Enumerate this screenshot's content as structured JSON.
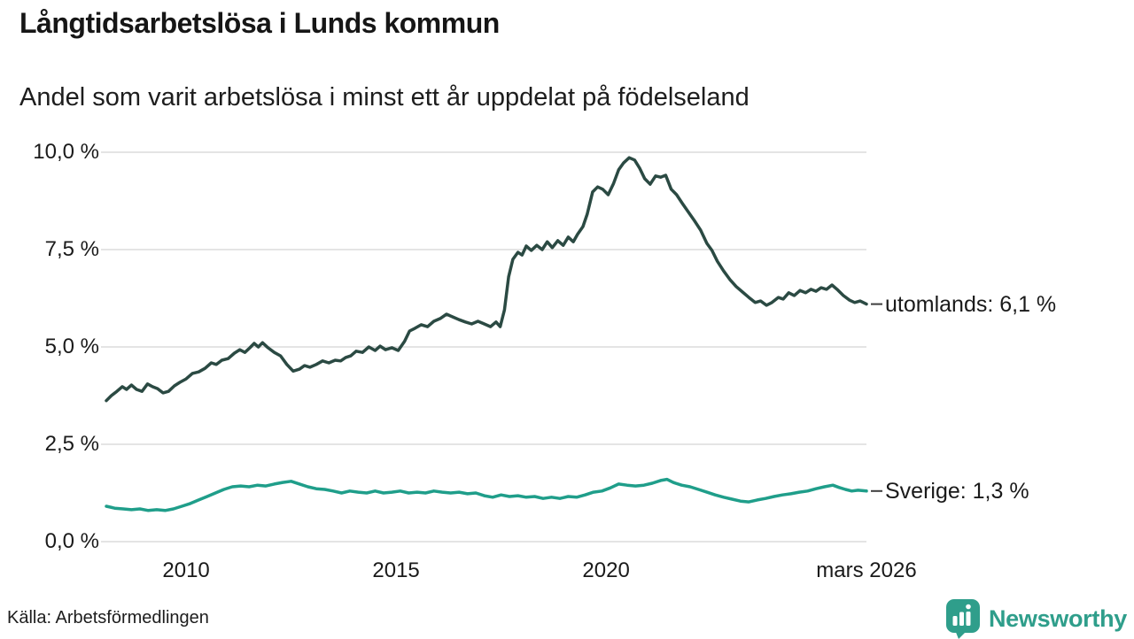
{
  "header": {
    "title": "Långtidsarbetslösa i Lunds kommun",
    "subtitle": "Andel som varit arbetslösa i minst ett år uppdelat på födelseland"
  },
  "footer": {
    "source": "Källa: Arbetsförmedlingen",
    "brand_name": "Newsworthy",
    "brand_icon": "bar-chart-pin-icon"
  },
  "colors": {
    "text": "#1a1a1a",
    "grid": "#e4e4e4",
    "tick_dash": "#3d3d3d",
    "background": "#ffffff",
    "brand": "#2f9e8b"
  },
  "chart_data": {
    "type": "line",
    "title": "Långtidsarbetslösa i Lunds kommun",
    "subtitle": "Andel som varit arbetslösa i minst ett år uppdelat på födelseland",
    "source": "Källa: Arbetsförmedlingen",
    "unit": "%",
    "grid": true,
    "legend_position": "right-end-labels",
    "xlim": [
      2008.1,
      2026.2
    ],
    "ylim": [
      0,
      10
    ],
    "y_ticks": [
      {
        "value": 10,
        "label": "10,0 %"
      },
      {
        "value": 7.5,
        "label": "7,5 %"
      },
      {
        "value": 5,
        "label": "5,0 %"
      },
      {
        "value": 2.5,
        "label": "2,5 %"
      },
      {
        "value": 0,
        "label": "0,0 %"
      }
    ],
    "x_ticks": [
      {
        "value": 2010,
        "label": "2010"
      },
      {
        "value": 2015,
        "label": "2015"
      },
      {
        "value": 2020,
        "label": "2020"
      },
      {
        "value": 2026.2,
        "label": "mars 2026"
      }
    ],
    "series": [
      {
        "name": "utomlands",
        "end_label": "utomlands: 6,1 %",
        "end_value": "6,1 %",
        "color": "#2b4a43",
        "points": [
          [
            2008.1,
            3.62
          ],
          [
            2008.22,
            3.75
          ],
          [
            2008.35,
            3.86
          ],
          [
            2008.48,
            3.98
          ],
          [
            2008.58,
            3.91
          ],
          [
            2008.7,
            4.02
          ],
          [
            2008.82,
            3.91
          ],
          [
            2008.95,
            3.86
          ],
          [
            2009.08,
            4.05
          ],
          [
            2009.2,
            3.98
          ],
          [
            2009.32,
            3.93
          ],
          [
            2009.45,
            3.82
          ],
          [
            2009.58,
            3.86
          ],
          [
            2009.72,
            4.0
          ],
          [
            2009.85,
            4.09
          ],
          [
            2010.0,
            4.18
          ],
          [
            2010.15,
            4.32
          ],
          [
            2010.3,
            4.36
          ],
          [
            2010.45,
            4.45
          ],
          [
            2010.6,
            4.59
          ],
          [
            2010.72,
            4.55
          ],
          [
            2010.85,
            4.66
          ],
          [
            2011.0,
            4.7
          ],
          [
            2011.15,
            4.84
          ],
          [
            2011.28,
            4.93
          ],
          [
            2011.4,
            4.86
          ],
          [
            2011.52,
            4.98
          ],
          [
            2011.62,
            5.09
          ],
          [
            2011.72,
            5.0
          ],
          [
            2011.82,
            5.11
          ],
          [
            2011.95,
            4.98
          ],
          [
            2012.1,
            4.86
          ],
          [
            2012.25,
            4.77
          ],
          [
            2012.4,
            4.55
          ],
          [
            2012.55,
            4.38
          ],
          [
            2012.7,
            4.43
          ],
          [
            2012.82,
            4.52
          ],
          [
            2012.95,
            4.48
          ],
          [
            2013.1,
            4.55
          ],
          [
            2013.25,
            4.64
          ],
          [
            2013.4,
            4.59
          ],
          [
            2013.55,
            4.66
          ],
          [
            2013.68,
            4.64
          ],
          [
            2013.8,
            4.73
          ],
          [
            2013.92,
            4.77
          ],
          [
            2014.05,
            4.89
          ],
          [
            2014.2,
            4.86
          ],
          [
            2014.35,
            5.0
          ],
          [
            2014.5,
            4.91
          ],
          [
            2014.62,
            5.02
          ],
          [
            2014.75,
            4.93
          ],
          [
            2014.9,
            4.98
          ],
          [
            2015.05,
            4.91
          ],
          [
            2015.2,
            5.14
          ],
          [
            2015.32,
            5.41
          ],
          [
            2015.45,
            5.48
          ],
          [
            2015.6,
            5.57
          ],
          [
            2015.75,
            5.52
          ],
          [
            2015.9,
            5.66
          ],
          [
            2016.05,
            5.73
          ],
          [
            2016.2,
            5.84
          ],
          [
            2016.35,
            5.77
          ],
          [
            2016.5,
            5.7
          ],
          [
            2016.65,
            5.64
          ],
          [
            2016.8,
            5.59
          ],
          [
            2016.95,
            5.66
          ],
          [
            2017.1,
            5.59
          ],
          [
            2017.25,
            5.52
          ],
          [
            2017.38,
            5.64
          ],
          [
            2017.48,
            5.52
          ],
          [
            2017.58,
            5.95
          ],
          [
            2017.68,
            6.8
          ],
          [
            2017.78,
            7.25
          ],
          [
            2017.9,
            7.43
          ],
          [
            2018.0,
            7.36
          ],
          [
            2018.1,
            7.59
          ],
          [
            2018.22,
            7.48
          ],
          [
            2018.35,
            7.61
          ],
          [
            2018.48,
            7.5
          ],
          [
            2018.6,
            7.7
          ],
          [
            2018.72,
            7.55
          ],
          [
            2018.85,
            7.73
          ],
          [
            2018.98,
            7.61
          ],
          [
            2019.1,
            7.82
          ],
          [
            2019.22,
            7.7
          ],
          [
            2019.32,
            7.89
          ],
          [
            2019.45,
            8.09
          ],
          [
            2019.55,
            8.41
          ],
          [
            2019.68,
            8.98
          ],
          [
            2019.8,
            9.11
          ],
          [
            2019.92,
            9.05
          ],
          [
            2020.05,
            8.91
          ],
          [
            2020.18,
            9.2
          ],
          [
            2020.3,
            9.55
          ],
          [
            2020.42,
            9.73
          ],
          [
            2020.55,
            9.86
          ],
          [
            2020.68,
            9.8
          ],
          [
            2020.8,
            9.59
          ],
          [
            2020.92,
            9.32
          ],
          [
            2021.05,
            9.18
          ],
          [
            2021.18,
            9.39
          ],
          [
            2021.3,
            9.36
          ],
          [
            2021.42,
            9.41
          ],
          [
            2021.55,
            9.05
          ],
          [
            2021.68,
            8.91
          ],
          [
            2021.82,
            8.68
          ],
          [
            2021.95,
            8.48
          ],
          [
            2022.1,
            8.25
          ],
          [
            2022.25,
            8.0
          ],
          [
            2022.4,
            7.66
          ],
          [
            2022.52,
            7.48
          ],
          [
            2022.65,
            7.2
          ],
          [
            2022.8,
            6.95
          ],
          [
            2022.95,
            6.73
          ],
          [
            2023.1,
            6.55
          ],
          [
            2023.25,
            6.41
          ],
          [
            2023.4,
            6.27
          ],
          [
            2023.55,
            6.14
          ],
          [
            2023.68,
            6.18
          ],
          [
            2023.82,
            6.07
          ],
          [
            2023.95,
            6.14
          ],
          [
            2024.1,
            6.27
          ],
          [
            2024.22,
            6.23
          ],
          [
            2024.35,
            6.39
          ],
          [
            2024.48,
            6.32
          ],
          [
            2024.62,
            6.45
          ],
          [
            2024.75,
            6.39
          ],
          [
            2024.88,
            6.48
          ],
          [
            2025.0,
            6.43
          ],
          [
            2025.12,
            6.52
          ],
          [
            2025.25,
            6.48
          ],
          [
            2025.38,
            6.59
          ],
          [
            2025.5,
            6.48
          ],
          [
            2025.65,
            6.32
          ],
          [
            2025.8,
            6.2
          ],
          [
            2025.92,
            6.14
          ],
          [
            2026.05,
            6.18
          ],
          [
            2026.2,
            6.1
          ]
        ]
      },
      {
        "name": "Sverige",
        "end_label": "Sverige: 1,3 %",
        "end_value": "1,3 %",
        "color": "#1f9e8a",
        "points": [
          [
            2008.1,
            0.91
          ],
          [
            2008.3,
            0.86
          ],
          [
            2008.5,
            0.84
          ],
          [
            2008.7,
            0.82
          ],
          [
            2008.9,
            0.84
          ],
          [
            2009.1,
            0.8
          ],
          [
            2009.3,
            0.82
          ],
          [
            2009.5,
            0.8
          ],
          [
            2009.7,
            0.84
          ],
          [
            2009.9,
            0.91
          ],
          [
            2010.1,
            0.98
          ],
          [
            2010.3,
            1.07
          ],
          [
            2010.5,
            1.16
          ],
          [
            2010.7,
            1.25
          ],
          [
            2010.9,
            1.34
          ],
          [
            2011.1,
            1.41
          ],
          [
            2011.3,
            1.43
          ],
          [
            2011.5,
            1.41
          ],
          [
            2011.7,
            1.45
          ],
          [
            2011.9,
            1.43
          ],
          [
            2012.1,
            1.48
          ],
          [
            2012.3,
            1.52
          ],
          [
            2012.5,
            1.55
          ],
          [
            2012.7,
            1.48
          ],
          [
            2012.9,
            1.41
          ],
          [
            2013.1,
            1.36
          ],
          [
            2013.3,
            1.34
          ],
          [
            2013.5,
            1.3
          ],
          [
            2013.7,
            1.25
          ],
          [
            2013.9,
            1.3
          ],
          [
            2014.1,
            1.27
          ],
          [
            2014.3,
            1.25
          ],
          [
            2014.5,
            1.3
          ],
          [
            2014.7,
            1.25
          ],
          [
            2014.9,
            1.27
          ],
          [
            2015.1,
            1.3
          ],
          [
            2015.3,
            1.25
          ],
          [
            2015.5,
            1.27
          ],
          [
            2015.7,
            1.25
          ],
          [
            2015.9,
            1.3
          ],
          [
            2016.1,
            1.27
          ],
          [
            2016.3,
            1.25
          ],
          [
            2016.5,
            1.27
          ],
          [
            2016.7,
            1.23
          ],
          [
            2016.9,
            1.25
          ],
          [
            2017.1,
            1.18
          ],
          [
            2017.3,
            1.14
          ],
          [
            2017.5,
            1.2
          ],
          [
            2017.7,
            1.16
          ],
          [
            2017.9,
            1.18
          ],
          [
            2018.1,
            1.14
          ],
          [
            2018.3,
            1.16
          ],
          [
            2018.5,
            1.11
          ],
          [
            2018.7,
            1.14
          ],
          [
            2018.9,
            1.11
          ],
          [
            2019.1,
            1.16
          ],
          [
            2019.3,
            1.14
          ],
          [
            2019.5,
            1.2
          ],
          [
            2019.7,
            1.27
          ],
          [
            2019.9,
            1.3
          ],
          [
            2020.1,
            1.38
          ],
          [
            2020.3,
            1.48
          ],
          [
            2020.5,
            1.45
          ],
          [
            2020.7,
            1.43
          ],
          [
            2020.9,
            1.45
          ],
          [
            2021.1,
            1.5
          ],
          [
            2021.3,
            1.57
          ],
          [
            2021.45,
            1.6
          ],
          [
            2021.6,
            1.52
          ],
          [
            2021.8,
            1.45
          ],
          [
            2022.0,
            1.41
          ],
          [
            2022.2,
            1.34
          ],
          [
            2022.4,
            1.27
          ],
          [
            2022.6,
            1.2
          ],
          [
            2022.8,
            1.14
          ],
          [
            2023.0,
            1.09
          ],
          [
            2023.2,
            1.04
          ],
          [
            2023.4,
            1.02
          ],
          [
            2023.6,
            1.07
          ],
          [
            2023.8,
            1.11
          ],
          [
            2024.0,
            1.16
          ],
          [
            2024.2,
            1.2
          ],
          [
            2024.4,
            1.23
          ],
          [
            2024.6,
            1.27
          ],
          [
            2024.8,
            1.3
          ],
          [
            2025.0,
            1.36
          ],
          [
            2025.2,
            1.41
          ],
          [
            2025.4,
            1.45
          ],
          [
            2025.55,
            1.39
          ],
          [
            2025.7,
            1.34
          ],
          [
            2025.85,
            1.3
          ],
          [
            2026.0,
            1.32
          ],
          [
            2026.2,
            1.3
          ]
        ]
      }
    ]
  }
}
